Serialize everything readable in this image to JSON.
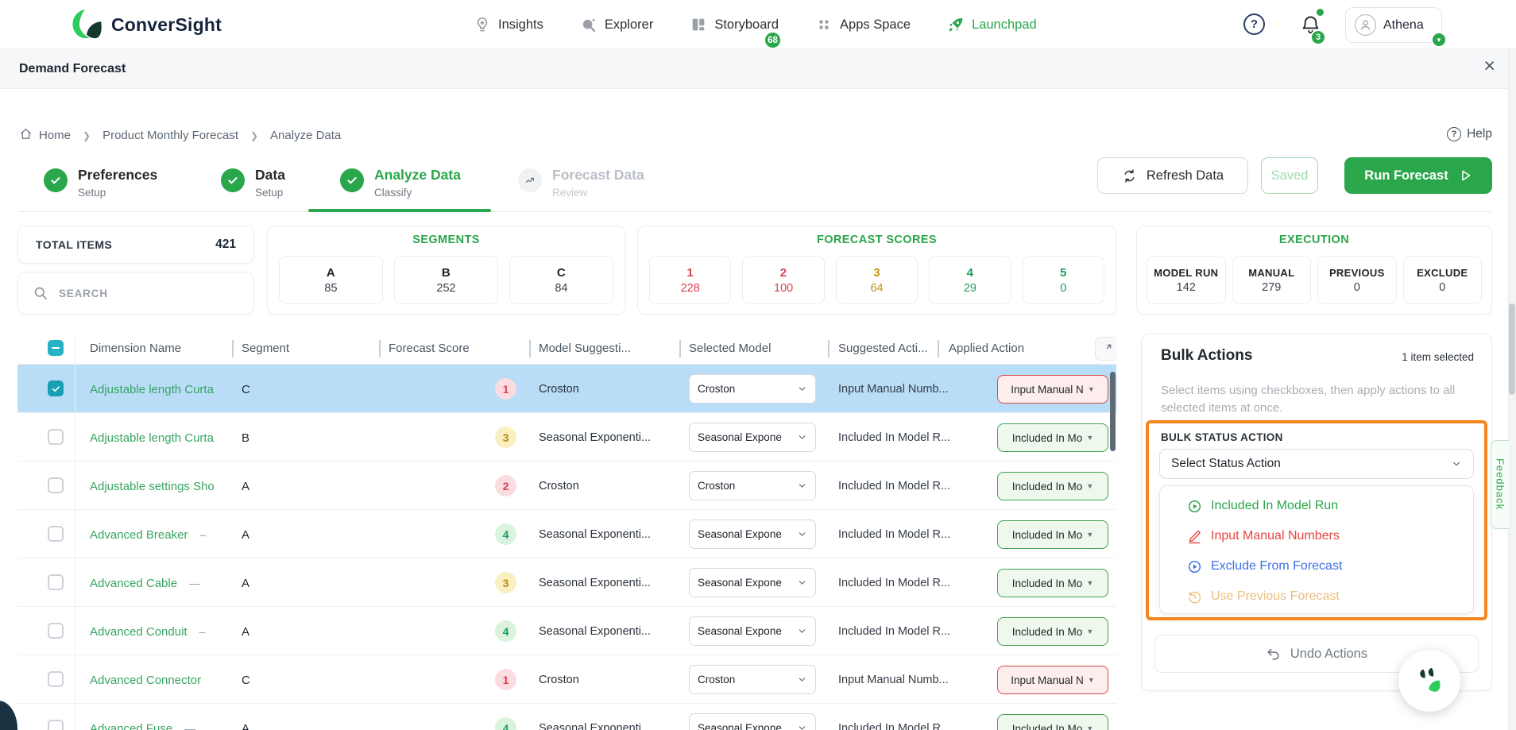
{
  "brand": {
    "name": "ConverSight"
  },
  "nav": {
    "items": [
      {
        "label": "Insights",
        "icon": "insights-icon"
      },
      {
        "label": "Explorer",
        "icon": "explorer-icon"
      },
      {
        "label": "Storyboard",
        "icon": "storyboard-icon",
        "badge": "68"
      },
      {
        "label": "Apps Space",
        "icon": "apps-space-icon"
      },
      {
        "label": "Launchpad",
        "icon": "launchpad-icon",
        "active": true
      }
    ],
    "help_glyph": "?",
    "notifications": {
      "count": "3"
    },
    "user": {
      "name": "Athena",
      "caret": "▼"
    }
  },
  "page": {
    "title": "Demand Forecast",
    "close_glyph": "×"
  },
  "breadcrumb": {
    "items": [
      "Home",
      "Product Monthly Forecast",
      "Analyze Data"
    ],
    "separator": "❯",
    "help_label": "Help",
    "help_glyph": "?"
  },
  "stepper": [
    {
      "title": "Preferences",
      "subtitle": "Setup",
      "state": "done"
    },
    {
      "title": "Data",
      "subtitle": "Setup",
      "state": "done"
    },
    {
      "title": "Analyze Data",
      "subtitle": "Classify",
      "state": "active"
    },
    {
      "title": "Forecast Data",
      "subtitle": "Review",
      "state": "upcoming"
    }
  ],
  "toolbar": {
    "refresh": "Refresh Data",
    "saved": "Saved",
    "run": "Run Forecast"
  },
  "stats": {
    "total": {
      "label": "TOTAL ITEMS",
      "value": "421"
    },
    "search": {
      "placeholder": "SEARCH"
    },
    "segments": {
      "title": "SEGMENTS",
      "items": [
        {
          "label": "A",
          "value": "85"
        },
        {
          "label": "B",
          "value": "252"
        },
        {
          "label": "C",
          "value": "84"
        }
      ]
    },
    "scores": {
      "title": "FORECAST SCORES",
      "items": [
        {
          "label": "1",
          "value": "228",
          "tone": "red"
        },
        {
          "label": "2",
          "value": "100",
          "tone": "red"
        },
        {
          "label": "3",
          "value": "64",
          "tone": "amber"
        },
        {
          "label": "4",
          "value": "29",
          "tone": "green"
        },
        {
          "label": "5",
          "value": "0",
          "tone": "green"
        }
      ]
    },
    "execution": {
      "title": "EXECUTION",
      "items": [
        {
          "label": "MODEL RUN",
          "value": "142"
        },
        {
          "label": "MANUAL",
          "value": "279"
        },
        {
          "label": "PREVIOUS",
          "value": "0"
        },
        {
          "label": "EXCLUDE",
          "value": "0"
        }
      ]
    }
  },
  "table": {
    "columns": [
      "Dimension Name",
      "Segment",
      "Forecast Score",
      "Model Suggesti...",
      "Selected Model",
      "Suggested Acti...",
      "Applied Action"
    ],
    "rows": [
      {
        "name": "Adjustable length Curta",
        "dash": "",
        "segment": "C",
        "score": "1",
        "tone": "red",
        "model": "Croston",
        "selected_model": "Croston",
        "suggested": "Input Manual Numb...",
        "applied": "Input Manual N",
        "applied_tone": "red",
        "checked": true,
        "highlight": true
      },
      {
        "name": "Adjustable length Curta",
        "dash": "",
        "segment": "B",
        "score": "3",
        "tone": "amber",
        "model": "Seasonal Exponenti...",
        "selected_model": "Seasonal Expone",
        "suggested": "Included In Model R...",
        "applied": "Included In Mo",
        "applied_tone": "green",
        "checked": false,
        "highlight": false
      },
      {
        "name": "Adjustable settings Sho",
        "dash": "",
        "segment": "A",
        "score": "2",
        "tone": "red",
        "model": "Croston",
        "selected_model": "Croston",
        "suggested": "Included In Model R...",
        "applied": "Included In Mo",
        "applied_tone": "green",
        "checked": false,
        "highlight": false
      },
      {
        "name": "Advanced Breaker",
        "dash": "–",
        "segment": "A",
        "score": "4",
        "tone": "green",
        "model": "Seasonal Exponenti...",
        "selected_model": "Seasonal Expone",
        "suggested": "Included In Model R...",
        "applied": "Included In Mo",
        "applied_tone": "green",
        "checked": false,
        "highlight": false
      },
      {
        "name": "Advanced Cable",
        "dash": "—",
        "segment": "A",
        "score": "3",
        "tone": "amber",
        "model": "Seasonal Exponenti...",
        "selected_model": "Seasonal Expone",
        "suggested": "Included In Model R...",
        "applied": "Included In Mo",
        "applied_tone": "green",
        "checked": false,
        "highlight": false
      },
      {
        "name": "Advanced Conduit",
        "dash": "–",
        "segment": "A",
        "score": "4",
        "tone": "green",
        "model": "Seasonal Exponenti...",
        "selected_model": "Seasonal Expone",
        "suggested": "Included In Model R...",
        "applied": "Included In Mo",
        "applied_tone": "green",
        "checked": false,
        "highlight": false
      },
      {
        "name": "Advanced Connector",
        "dash": "",
        "segment": "C",
        "score": "1",
        "tone": "red",
        "model": "Croston",
        "selected_model": "Croston",
        "suggested": "Input Manual Numb...",
        "applied": "Input Manual N",
        "applied_tone": "red",
        "checked": false,
        "highlight": false
      },
      {
        "name": "Advanced Fuse",
        "dash": "—",
        "segment": "A",
        "score": "4",
        "tone": "green",
        "model": "Seasonal Exponenti...",
        "selected_model": "Seasonal Expone",
        "suggested": "Included In Model R...",
        "applied": "Included In Mo",
        "applied_tone": "green",
        "checked": false,
        "highlight": false
      }
    ]
  },
  "bulk": {
    "title": "Bulk Actions",
    "selected_info": "1 item selected",
    "description": "Select items using checkboxes, then apply actions to all selected items at once.",
    "status_label": "BULK STATUS ACTION",
    "select_value": "Select Status Action",
    "options": [
      {
        "label": "Included In Model Run",
        "icon": "play-circle-icon",
        "color": "#2aa64b"
      },
      {
        "label": "Input Manual Numbers",
        "icon": "pencil-icon",
        "color": "#e8453f"
      },
      {
        "label": "Exclude From Forecast",
        "icon": "play-circle-icon",
        "color": "#3d6fe3"
      },
      {
        "label": "Use Previous Forecast",
        "icon": "history-icon",
        "color": "#ecbe7e"
      }
    ],
    "undo": "Undo Actions"
  },
  "feedback": {
    "label": "Feedback"
  },
  "colors": {
    "accent": "#2aa64b",
    "highlight_row": "#b9dcf7",
    "bulk_outline": "#f5851e",
    "selection_teal": "#17a0b4"
  }
}
